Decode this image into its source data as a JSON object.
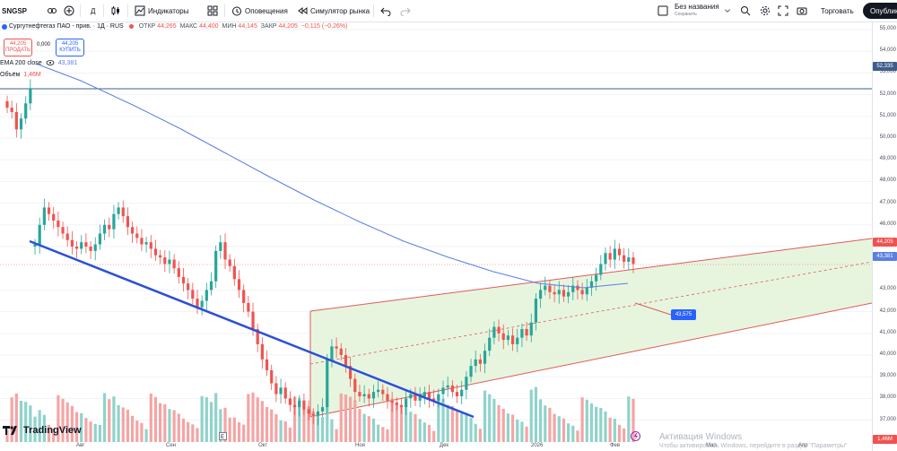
{
  "toolbar": {
    "symbol": "SNGSP",
    "interval": "Д",
    "indicators_label": "Индикаторы",
    "alerts_label": "Оповещения",
    "replay_label": "Симулятор рынка",
    "layout_name": "Без названия",
    "layout_status": "Сохранить",
    "trade_label": "Торговать",
    "publish_label": "Опублик"
  },
  "legend": {
    "title": "Сургутнефтегаз ПАО - прив. · 1Д · RUS",
    "open_label": "ОТКР",
    "open_value": "44,265",
    "high_label": "МАКС",
    "high_value": "44,400",
    "low_label": "МИН",
    "low_value": "44,145",
    "close_label": "ЗАКР",
    "close_value": "44,205",
    "change": "−0,115 (−0,26%)",
    "sell_price": "44,205",
    "sell_label": "ПРОДАТЬ",
    "spread": "0,000",
    "buy_price": "44,205",
    "buy_label": "КУПИТЬ",
    "ema_label": "EMA 200 close",
    "ema_value": "43,381",
    "volume_label": "Объём",
    "volume_value": "1,46M"
  },
  "price_axis": {
    "ticks": [
      "55,000",
      "54,000",
      "53,000",
      "52,000",
      "51,000",
      "50,000",
      "49,000",
      "48,000",
      "47,000",
      "46,000",
      "45,000",
      "43,000",
      "42,000",
      "41,000",
      "40,000",
      "39,000",
      "38,000",
      "37,000"
    ],
    "hline_tag": "52,335",
    "last_price_tag": "44,205",
    "ema_tag": "43,381",
    "volume_tag": "1,46M"
  },
  "time_axis": {
    "ticks": [
      "Авг",
      "Сен",
      "Окт",
      "Ноя",
      "Дек",
      "2026",
      "Фев",
      "Мар",
      "Апр"
    ]
  },
  "drawing": {
    "distance_tag": "43,575"
  },
  "branding": {
    "logo_text": "TradingView"
  },
  "system": {
    "activation_title": "Активация Windows",
    "activation_text": "Чтобы активировать Windows, перейдите в раздел \"Параметры\""
  },
  "colors": {
    "up": "#26a69a",
    "down": "#ef5350",
    "ema": "#5b7fe0",
    "trend_line": "#2b50d8",
    "channel": "#e05a5a",
    "channel_fill": "#e4f4dc"
  }
}
